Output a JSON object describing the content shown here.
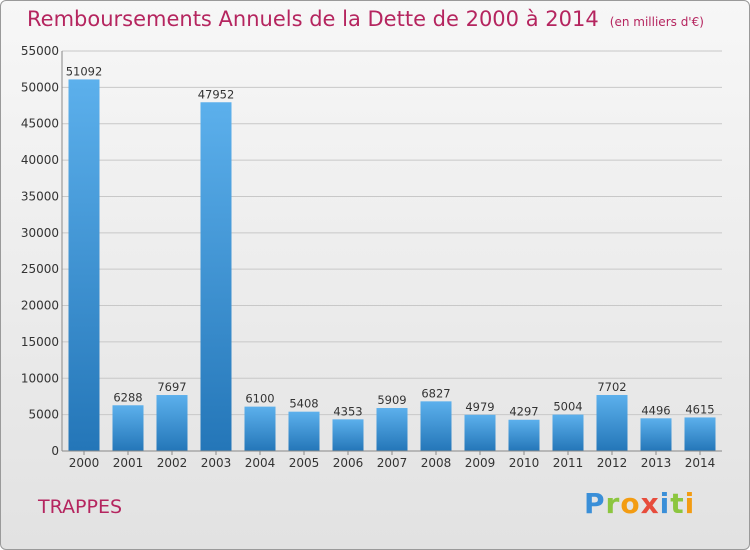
{
  "title": "Remboursements Annuels de la Dette de 2000 à 2014",
  "unit": "(en milliers d'€)",
  "city": "TRAPPES",
  "logo": {
    "text": "Proxiti",
    "letters": [
      {
        "ch": "P",
        "color": "#3a8fd8"
      },
      {
        "ch": "r",
        "color": "#8cc63f"
      },
      {
        "ch": "o",
        "color": "#f39c12"
      },
      {
        "ch": "x",
        "color": "#e74c3c"
      },
      {
        "ch": "i",
        "color": "#3a8fd8"
      },
      {
        "ch": "t",
        "color": "#8cc63f"
      },
      {
        "ch": "i",
        "color": "#f39c12"
      }
    ]
  },
  "colors": {
    "title": "#b5255f",
    "bar_top": "#5cb0ec",
    "bar_bottom": "#2476b8",
    "axis_text": "#333333"
  },
  "chart_data": {
    "type": "bar",
    "title": "Remboursements Annuels de la Dette de 2000 à 2014",
    "xlabel": "",
    "ylabel": "",
    "categories": [
      "2000",
      "2001",
      "2002",
      "2003",
      "2004",
      "2005",
      "2006",
      "2007",
      "2008",
      "2009",
      "2010",
      "2011",
      "2012",
      "2013",
      "2014"
    ],
    "values": [
      51092,
      6288,
      7697,
      47952,
      6100,
      5408,
      4353,
      5909,
      6827,
      4979,
      4297,
      5004,
      7702,
      4496,
      4615
    ],
    "ylim": [
      0,
      55000
    ],
    "yticks": [
      0,
      5000,
      10000,
      15000,
      20000,
      25000,
      30000,
      35000,
      40000,
      45000,
      50000,
      55000
    ],
    "grid": true,
    "data_labels": true
  }
}
